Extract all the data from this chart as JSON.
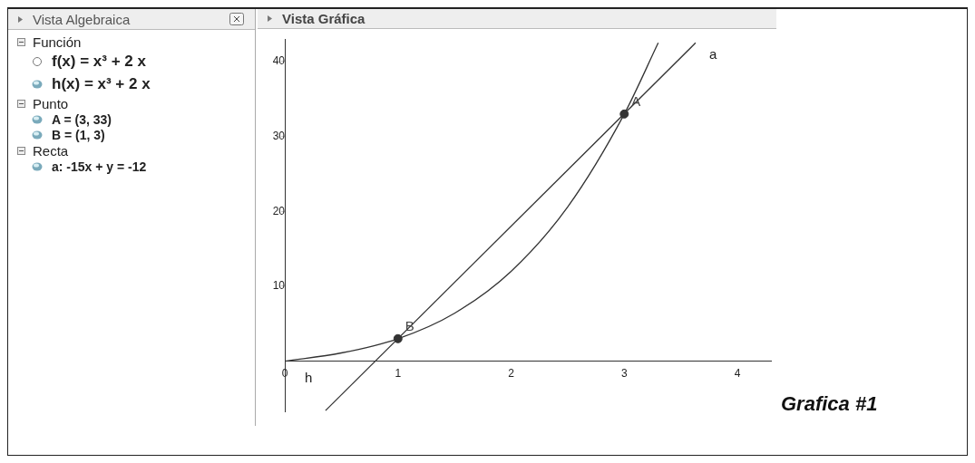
{
  "chart_data": {
    "type": "line",
    "title": "Vista Gráfica",
    "x": [
      0,
      0.5,
      1,
      1.5,
      2,
      2.5,
      3,
      3.3
    ],
    "series": [
      {
        "name": "h",
        "color": "#333333",
        "values": [
          0,
          1.1,
          3,
          6.4,
          12,
          20.6,
          33,
          42.5
        ]
      },
      {
        "name": "a",
        "color": "#333333",
        "x": [
          0.36,
          3.63
        ],
        "values": [
          -6.6,
          42.5
        ]
      },
      {
        "type": "scatter",
        "marker": "circle",
        "color": "#333333",
        "x": [
          1,
          3
        ],
        "values": [
          3,
          33
        ]
      }
    ],
    "xlim": [
      0,
      4.3
    ],
    "ylim": [
      -6.8,
      43
    ],
    "xticks": [
      0,
      1,
      2,
      3,
      4
    ],
    "yticks": [
      10,
      20,
      30,
      40
    ],
    "grid": false,
    "legend": false,
    "marker": "none",
    "line_style": "solid",
    "annotations": [
      "Vista Algebraica",
      "Función",
      "f(x) = x³ + 2 x",
      "h(x) = x³ + 2 x",
      "Punto",
      "A = (3, 33)",
      "B = (1, 3)",
      "Recta",
      "a: -15x + y = -12",
      "Grafica #1",
      {
        "text": "A",
        "x": 3,
        "y": 33
      },
      {
        "text": "B",
        "x": 1,
        "y": 3
      }
    ]
  }
}
